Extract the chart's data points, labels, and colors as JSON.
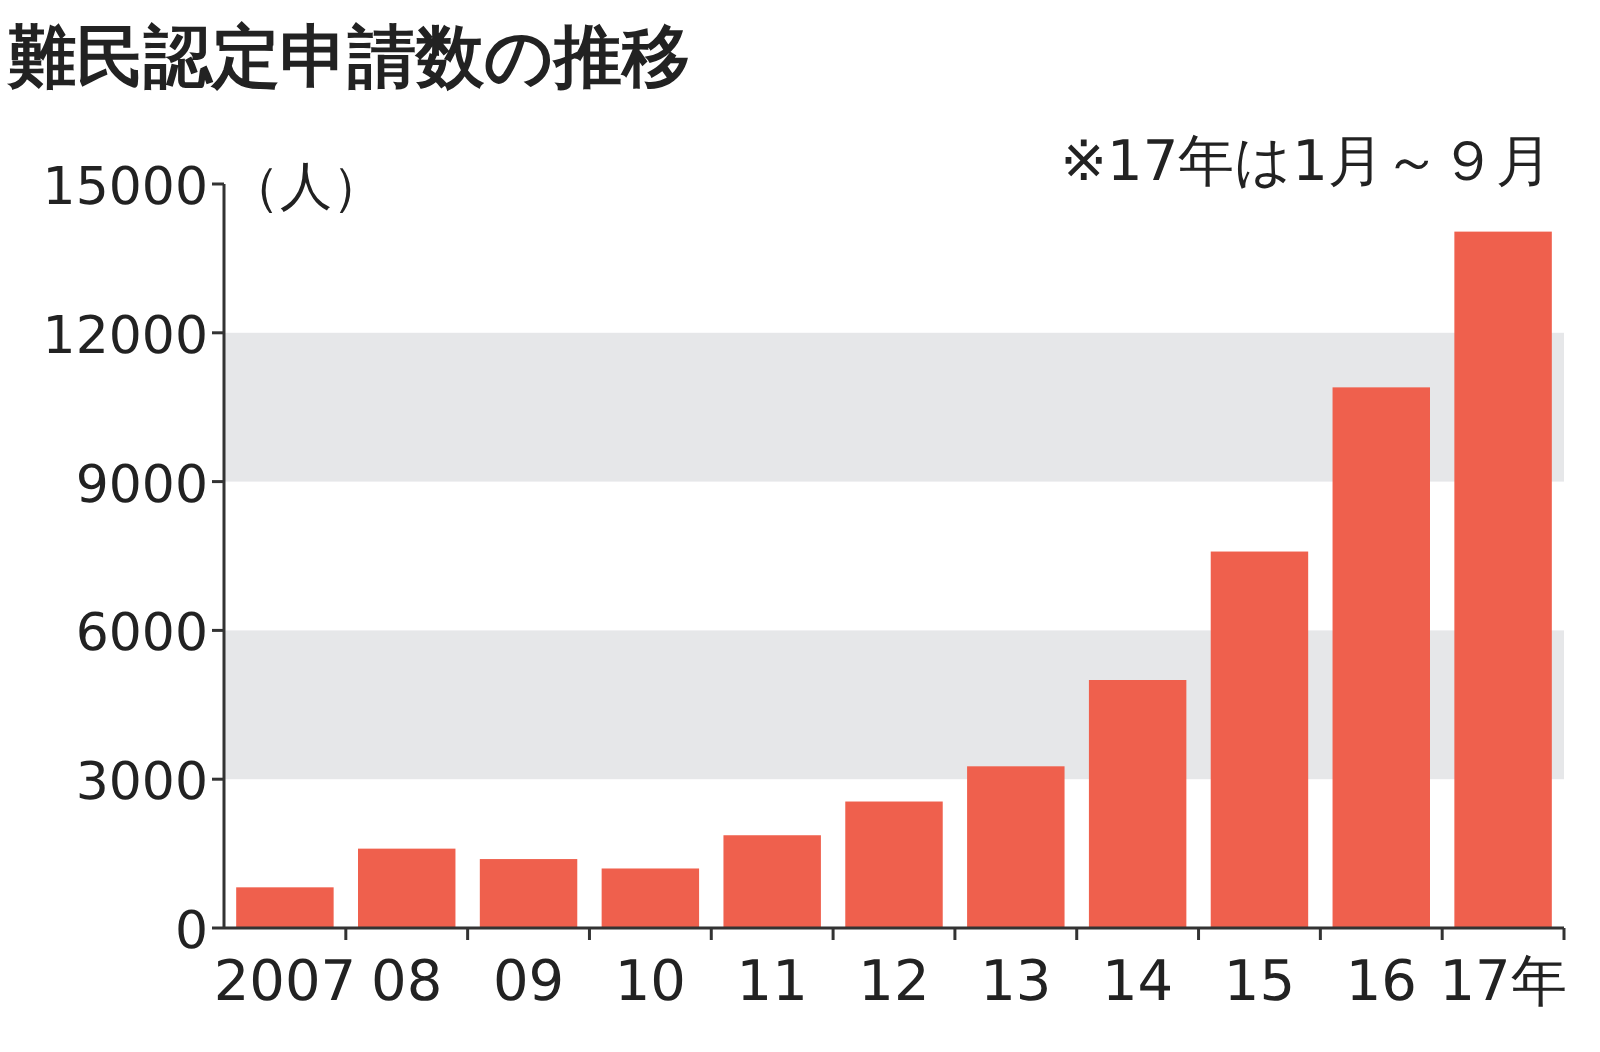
{
  "chart_data": {
    "type": "bar",
    "title": "難民認定申請数の推移",
    "ylabel": "（人）",
    "annotations": [
      "※17年は1月～９月"
    ],
    "categories": [
      "2007",
      "08",
      "09",
      "10",
      "11",
      "12",
      "13",
      "14",
      "15",
      "16",
      "17年"
    ],
    "values": [
      820,
      1600,
      1390,
      1200,
      1870,
      2550,
      3260,
      5000,
      7590,
      10900,
      14040
    ],
    "color": "#ef604d",
    "ylim": [
      0,
      15000
    ],
    "yticks": [
      0,
      3000,
      6000,
      9000,
      12000,
      15000
    ],
    "bands": [
      {
        "axis": "y",
        "from": 3000,
        "to": 6000,
        "color": "#e6e7e9"
      },
      {
        "axis": "y",
        "from": 9000,
        "to": 12000,
        "color": "#e6e7e9"
      }
    ]
  }
}
